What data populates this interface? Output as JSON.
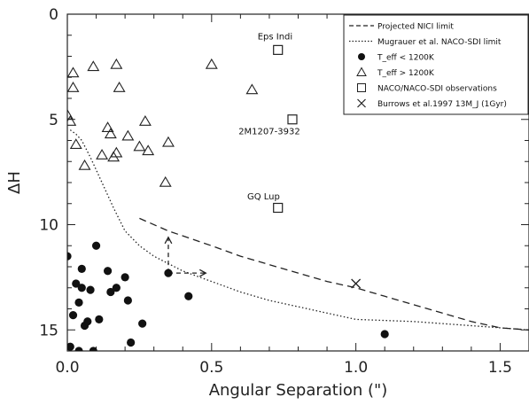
{
  "chart_data": {
    "type": "scatter",
    "title": "",
    "xlabel": "Angular Separation (\")",
    "ylabel": "ΔH",
    "xlim": [
      0,
      1.6
    ],
    "ylim": [
      0,
      16
    ],
    "y_inverted": true,
    "grid": false,
    "legend_position": "top-right",
    "x_ticks": [
      "0.0",
      "0.5",
      "1.0",
      "1.5"
    ],
    "x_tick_values": [
      0,
      0.5,
      1.0,
      1.5
    ],
    "y_ticks": [
      "0",
      "5",
      "10",
      "15"
    ],
    "y_tick_values": [
      0,
      5,
      10,
      15
    ],
    "legend": [
      {
        "label": "Projected NICI limit",
        "marker": "dashed-line"
      },
      {
        "label": "Mugrauer et al. NACO-SDI limit",
        "marker": "dotted-line"
      },
      {
        "label": "T_eff < 1200K",
        "marker": "filled-circle"
      },
      {
        "label": "T_eff > 1200K",
        "marker": "open-triangle"
      },
      {
        "label": "NACO/NACO-SDI observations",
        "marker": "open-square"
      },
      {
        "label": "Burrows et al.1997 13M_J (1Gyr)",
        "marker": "cross"
      }
    ],
    "series": [
      {
        "name": "Projected NICI limit",
        "style": "dashed",
        "x": [
          0.25,
          0.35,
          0.5,
          0.6,
          0.75,
          0.9,
          1.0,
          1.1,
          1.2,
          1.3,
          1.4,
          1.5,
          1.6
        ],
        "y": [
          9.7,
          10.3,
          11.0,
          11.5,
          12.1,
          12.7,
          13.0,
          13.4,
          13.8,
          14.2,
          14.6,
          14.9,
          15.0
        ]
      },
      {
        "name": "Mugrauer et al. NACO-SDI limit",
        "style": "dotted",
        "x": [
          0.01,
          0.03,
          0.05,
          0.08,
          0.12,
          0.16,
          0.2,
          0.25,
          0.3,
          0.4,
          0.5,
          0.6,
          0.7,
          0.8,
          0.9,
          1.0,
          1.2,
          1.4,
          1.6
        ],
        "y": [
          5.5,
          5.7,
          6.0,
          6.8,
          8.0,
          9.2,
          10.3,
          11.0,
          11.5,
          12.2,
          12.7,
          13.2,
          13.6,
          13.9,
          14.2,
          14.5,
          14.6,
          14.8,
          15.0
        ]
      },
      {
        "name": "T_eff < 1200K",
        "marker": "filled-circle",
        "x": [
          0.0,
          0.02,
          0.03,
          0.04,
          0.05,
          0.05,
          0.06,
          0.07,
          0.08,
          0.1,
          0.11,
          0.14,
          0.15,
          0.17,
          0.2,
          0.21,
          0.22,
          0.26,
          0.35,
          0.42,
          1.1,
          0.01,
          0.04,
          0.09
        ],
        "y": [
          11.5,
          14.3,
          12.8,
          13.7,
          13.0,
          12.1,
          14.8,
          14.6,
          13.1,
          11.0,
          14.5,
          12.2,
          13.2,
          13.0,
          12.5,
          13.6,
          15.6,
          14.7,
          12.3,
          13.4,
          15.2,
          15.8,
          16.0,
          16.0
        ]
      },
      {
        "name": "T_eff > 1200K",
        "marker": "open-triangle",
        "x": [
          0.0,
          0.01,
          0.02,
          0.02,
          0.03,
          0.06,
          0.09,
          0.12,
          0.14,
          0.15,
          0.16,
          0.17,
          0.17,
          0.18,
          0.21,
          0.25,
          0.27,
          0.28,
          0.34,
          0.35,
          0.5,
          0.64
        ],
        "y": [
          4.8,
          5.1,
          2.8,
          3.5,
          6.2,
          7.2,
          2.5,
          6.7,
          5.4,
          5.7,
          6.8,
          6.6,
          2.4,
          3.5,
          5.8,
          6.3,
          5.1,
          6.5,
          8.0,
          6.1,
          2.4,
          3.6
        ]
      },
      {
        "name": "NACO/NACO-SDI observations",
        "marker": "open-square",
        "x": [
          0.73,
          0.78,
          0.73
        ],
        "y": [
          1.7,
          5.0,
          9.2
        ]
      },
      {
        "name": "Burrows et al.1997 13M_J (1Gyr)",
        "marker": "cross",
        "x": [
          1.0
        ],
        "y": [
          12.8
        ]
      }
    ],
    "annotations": [
      {
        "text": "Eps Indi",
        "x": 0.72,
        "y": 1.2
      },
      {
        "text": "2M1207-3932",
        "x": 0.7,
        "y": 5.7
      },
      {
        "text": "GQ Lup",
        "x": 0.68,
        "y": 8.8
      }
    ],
    "arrows": [
      {
        "from_x": 0.35,
        "from_y": 12.3,
        "to_x": 0.35,
        "to_y": 10.6
      },
      {
        "from_x": 0.35,
        "from_y": 12.3,
        "to_x": 0.48,
        "to_y": 12.3
      }
    ]
  }
}
